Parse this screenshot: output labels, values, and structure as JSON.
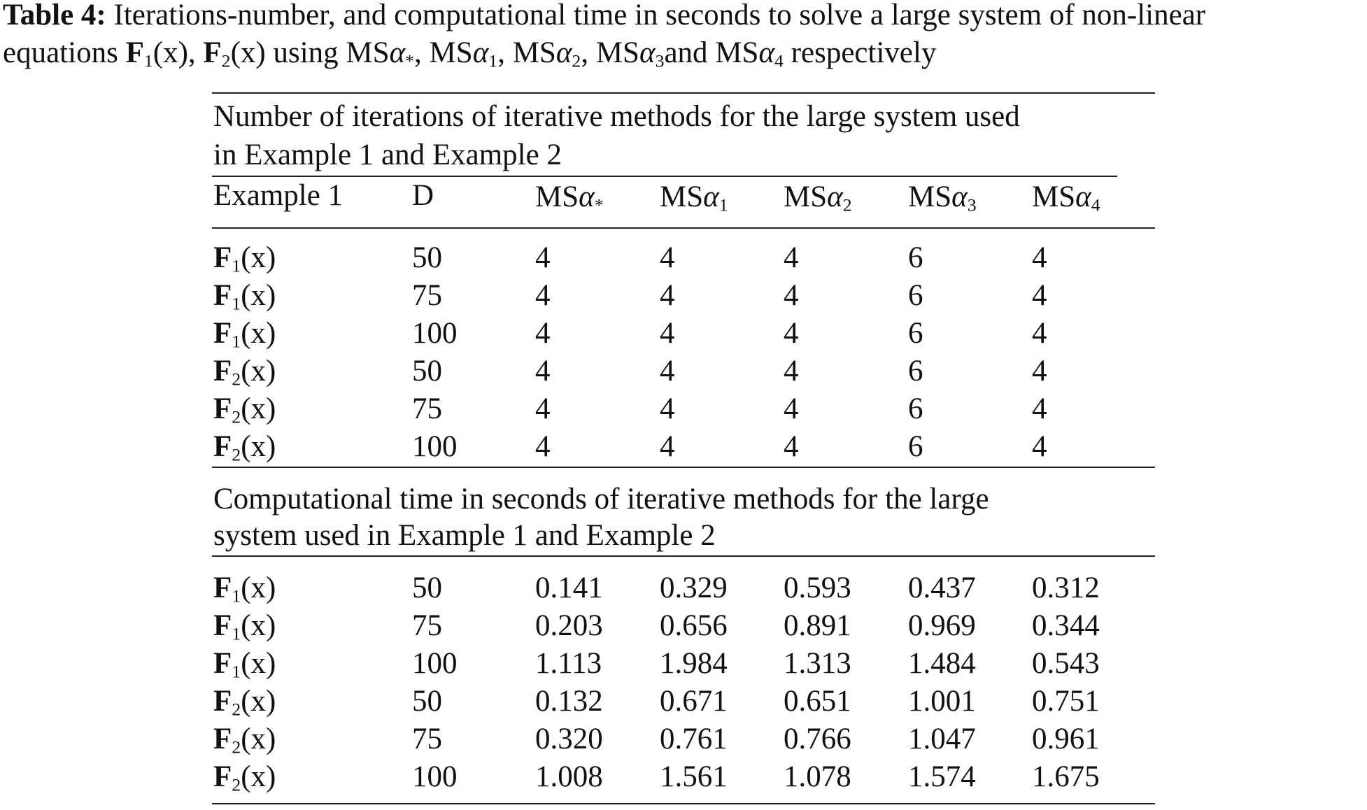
{
  "caption": {
    "label": "Table 4:",
    "line1": "Iterations-number, and computational time in seconds to solve a large system of non-linear",
    "line2_prefix": "equations",
    "functions": [
      {
        "name": "F",
        "sub": "1",
        "arg": "(x)"
      },
      {
        "name": "F",
        "sub": "2",
        "arg": "(x)"
      }
    ],
    "using": "using",
    "methods": [
      {
        "base": "MS",
        "greek": "α",
        "sub": "*"
      },
      {
        "base": "MS",
        "greek": "α",
        "sub": "1"
      },
      {
        "base": "MS",
        "greek": "α",
        "sub": "2"
      },
      {
        "base": "MS",
        "greek": "α",
        "sub": "3"
      },
      {
        "base": "MS",
        "greek": "α",
        "sub": "4"
      }
    ],
    "and": "and",
    "suffix": "respectively"
  },
  "section1": {
    "title_line1": "Number of iterations of iterative methods for the large system used",
    "title_line2": "in Example 1 and Example 2",
    "header_first": "Example 1",
    "header_d": "D",
    "rows": [
      {
        "f": "F",
        "sub": "1",
        "arg": "(x)",
        "d": "50",
        "vals": [
          "4",
          "4",
          "4",
          "6",
          "4"
        ]
      },
      {
        "f": "F",
        "sub": "1",
        "arg": "(x)",
        "d": "75",
        "vals": [
          "4",
          "4",
          "4",
          "6",
          "4"
        ]
      },
      {
        "f": "F",
        "sub": "1",
        "arg": "(x)",
        "d": "100",
        "vals": [
          "4",
          "4",
          "4",
          "6",
          "4"
        ]
      },
      {
        "f": "F",
        "sub": "2",
        "arg": "(x)",
        "d": "50",
        "vals": [
          "4",
          "4",
          "4",
          "6",
          "4"
        ]
      },
      {
        "f": "F",
        "sub": "2",
        "arg": "(x)",
        "d": "75",
        "vals": [
          "4",
          "4",
          "4",
          "6",
          "4"
        ]
      },
      {
        "f": "F",
        "sub": "2",
        "arg": "(x)",
        "d": "100",
        "vals": [
          "4",
          "4",
          "4",
          "6",
          "4"
        ]
      }
    ]
  },
  "section2": {
    "title_line1": "Computational time in seconds of iterative methods for the large",
    "title_line2": "system used in Example 1 and Example 2",
    "rows": [
      {
        "f": "F",
        "sub": "1",
        "arg": "(x)",
        "d": "50",
        "vals": [
          "0.141",
          "0.329",
          "0.593",
          "0.437",
          "0.312"
        ]
      },
      {
        "f": "F",
        "sub": "1",
        "arg": "(x)",
        "d": "75",
        "vals": [
          "0.203",
          "0.656",
          "0.891",
          "0.969",
          "0.344"
        ]
      },
      {
        "f": "F",
        "sub": "1",
        "arg": "(x)",
        "d": "100",
        "vals": [
          "1.113",
          "1.984",
          "1.313",
          "1.484",
          "0.543"
        ]
      },
      {
        "f": "F",
        "sub": "2",
        "arg": "(x)",
        "d": "50",
        "vals": [
          "0.132",
          "0.671",
          "0.651",
          "1.001",
          "0.751"
        ]
      },
      {
        "f": "F",
        "sub": "2",
        "arg": "(x)",
        "d": "75",
        "vals": [
          "0.320",
          "0.761",
          "0.766",
          "1.047",
          "0.961"
        ]
      },
      {
        "f": "F",
        "sub": "2",
        "arg": "(x)",
        "d": "100",
        "vals": [
          "1.008",
          "1.561",
          "1.078",
          "1.574",
          "1.675"
        ]
      }
    ]
  }
}
